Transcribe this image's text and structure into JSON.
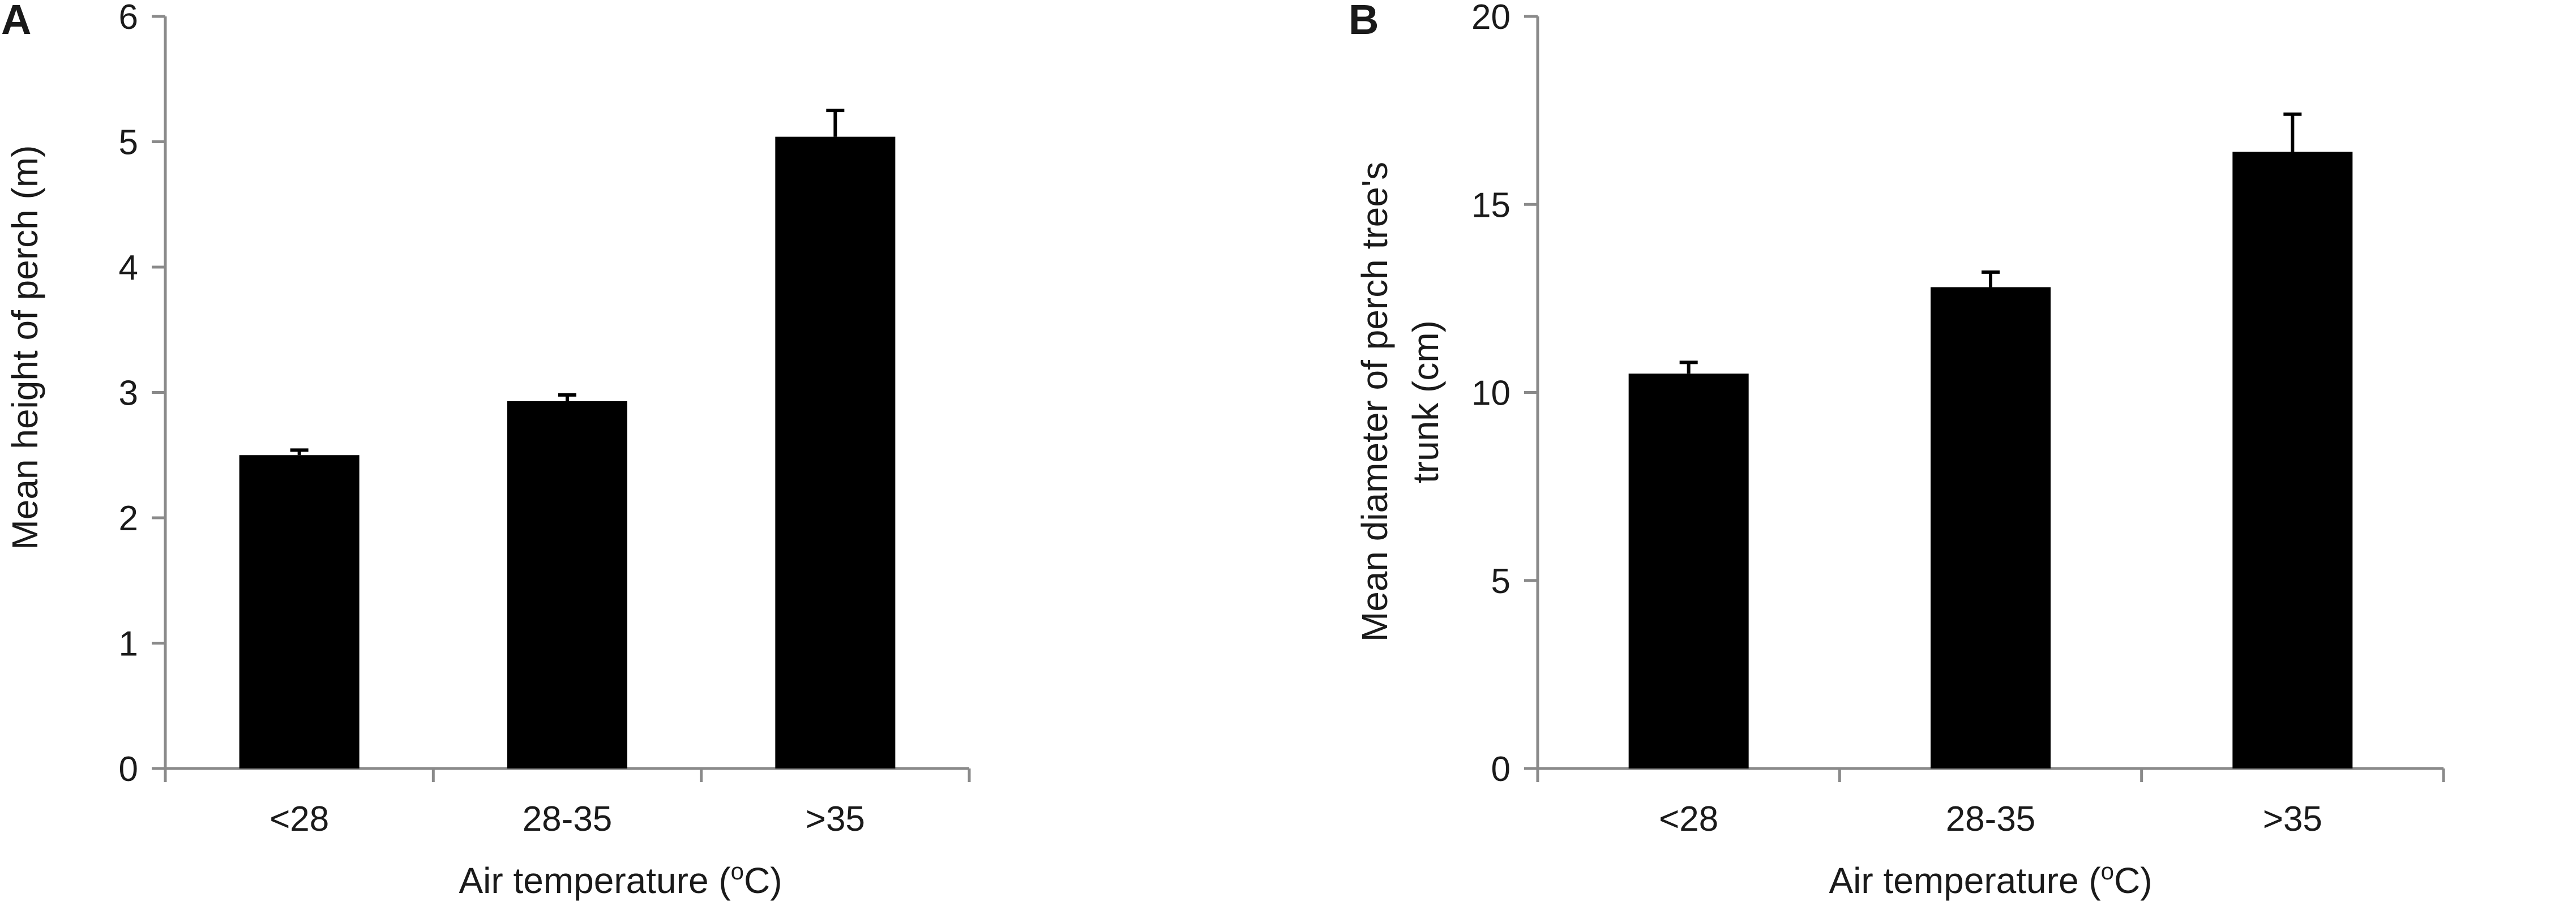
{
  "chart_data": [
    {
      "panel": "A",
      "type": "bar",
      "categories": [
        "<28",
        "28-35",
        ">35"
      ],
      "values": [
        2.5,
        2.93,
        5.04
      ],
      "errors": [
        0.04,
        0.05,
        0.21
      ],
      "xlabel": "Air temperature (",
      "xlabel_sup": "o",
      "xlabel_end": "C)",
      "ylabel": "Mean height of perch (m)",
      "ylim": [
        0,
        6
      ],
      "yticks": [
        "0",
        "1",
        "2",
        "3",
        "4",
        "5",
        "6"
      ],
      "bar_color": "#000000",
      "grid": false
    },
    {
      "panel": "B",
      "type": "bar",
      "categories": [
        "<28",
        "28-35",
        ">35"
      ],
      "values": [
        10.5,
        12.8,
        16.4
      ],
      "errors": [
        0.3,
        0.4,
        1.0
      ],
      "xlabel": "Air temperature (",
      "xlabel_sup": "o",
      "xlabel_end": "C)",
      "ylabel_line1": "Mean diameter of perch tree's",
      "ylabel_line2": "trunk (cm)",
      "ylim": [
        0,
        20
      ],
      "yticks": [
        "0",
        "5",
        "10",
        "15",
        "20"
      ],
      "bar_color": "#000000",
      "grid": false
    }
  ]
}
